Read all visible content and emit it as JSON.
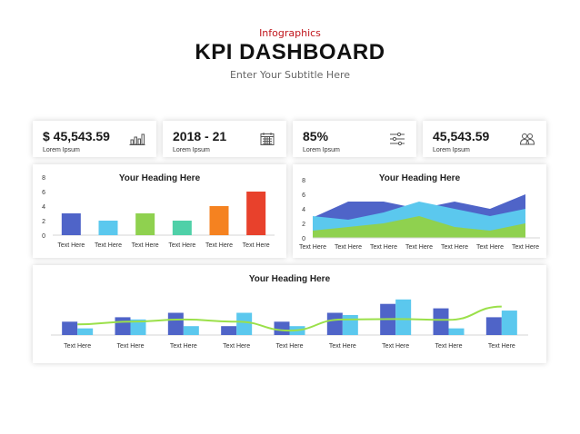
{
  "header": {
    "eyebrow": "Infographics",
    "title": "KPI DASHBOARD",
    "subtitle": "Enter Your Subtitle Here"
  },
  "kpis": [
    {
      "value": "$ 45,543.59",
      "label": "Lorem Ipsum",
      "icon": "bar-chart-icon"
    },
    {
      "value": "2018 - 21",
      "label": "Lorem Ipsum",
      "icon": "calendar-icon"
    },
    {
      "value": "85%",
      "label": "Lorem Ipsum",
      "icon": "sliders-icon"
    },
    {
      "value": "45,543.59",
      "label": "Lorem Ipsum",
      "icon": "users-icon"
    }
  ],
  "colors": {
    "red_accent": "#c0141b",
    "blue": "#4f64c8",
    "light_blue": "#5bc8ee",
    "green": "#8fd14f",
    "teal": "#4fd0a8",
    "orange": "#f58220",
    "red": "#e8412c",
    "line_green": "#9be04a"
  },
  "chart_data": [
    {
      "type": "bar",
      "title": "Your Heading Here",
      "categories": [
        "Text Here",
        "Text Here",
        "Text Here",
        "Text Here",
        "Text Here",
        "Text Here"
      ],
      "values": [
        3,
        2,
        3,
        2,
        4,
        6
      ],
      "bar_colors": [
        "#4f64c8",
        "#5bc8ee",
        "#8fd14f",
        "#4fd0a8",
        "#f58220",
        "#e8412c"
      ],
      "ylim": [
        0,
        8
      ],
      "yticks": [
        0,
        2,
        4,
        6,
        8
      ]
    },
    {
      "type": "area",
      "title": "Your Heading Here",
      "categories": [
        "Text Here",
        "Text Here",
        "Text Here",
        "Text Here",
        "Text Here",
        "Text Here",
        "Text Here"
      ],
      "series": [
        {
          "values": [
            2.8,
            5,
            5,
            4,
            5,
            4,
            6
          ],
          "color": "#4f64c8"
        },
        {
          "values": [
            3,
            2.5,
            3.5,
            5,
            4,
            3,
            4
          ],
          "color": "#5bc8ee"
        },
        {
          "values": [
            1,
            1.5,
            2,
            3,
            1.5,
            1,
            2
          ],
          "color": "#8fd14f"
        }
      ],
      "ylim": [
        0,
        8
      ],
      "yticks": [
        0,
        2,
        4,
        6,
        8
      ]
    },
    {
      "type": "bar",
      "title": "Your Heading Here",
      "categories": [
        "Text Here",
        "Text Here",
        "Text Here",
        "Text Here",
        "Text Here",
        "Text Here",
        "Text Here",
        "Text Here",
        "Text Here"
      ],
      "series": [
        {
          "values": [
            3,
            4,
            5,
            2,
            3,
            5,
            7,
            6,
            4
          ],
          "color": "#4f64c8"
        },
        {
          "values": [
            1.5,
            3.5,
            2,
            5,
            2,
            4.5,
            8,
            1.5,
            5.5
          ],
          "color": "#5bc8ee"
        },
        {
          "values": [
            2.4,
            3,
            3.5,
            3,
            1,
            3.5,
            3.6,
            3.4,
            6.4
          ],
          "color": "#9be04a",
          "style": "line"
        }
      ],
      "ylim": [
        0,
        10
      ]
    }
  ]
}
